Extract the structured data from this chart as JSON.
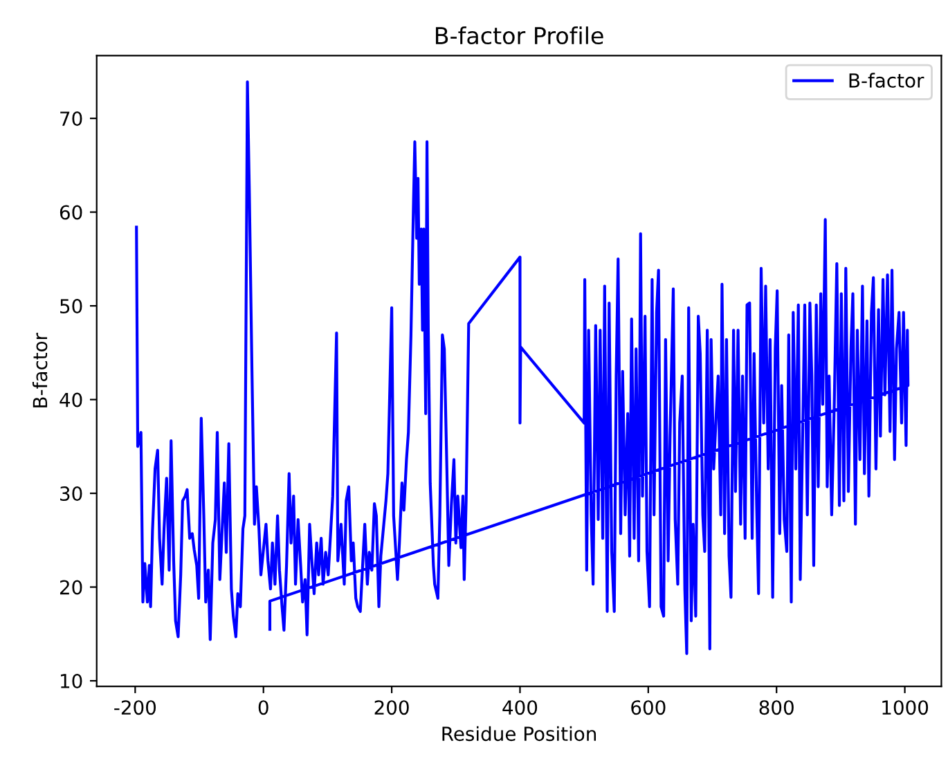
{
  "chart_data": {
    "type": "line",
    "title": "B-factor Profile",
    "xlabel": "Residue Position",
    "ylabel": "B-factor",
    "xlim": [
      -260,
      1057
    ],
    "ylim": [
      9.4,
      76.7
    ],
    "xticks": [
      -200,
      0,
      200,
      400,
      600,
      800,
      1000
    ],
    "yticks": [
      10,
      20,
      30,
      40,
      50,
      60,
      70
    ],
    "legend": "top right",
    "grid": false,
    "series": [
      {
        "name": "B-factor",
        "color": "#0000ff",
        "x": [
          -198,
          -196,
          -191,
          -188,
          -185,
          -181,
          -178,
          -176,
          -173,
          -169,
          -165,
          -162,
          -158,
          -155,
          -151,
          -147,
          -144,
          -140,
          -137,
          -133,
          -129,
          -126,
          -122,
          -119,
          -115,
          -111,
          -108,
          -104,
          -101,
          -97,
          -93,
          -90,
          -86,
          -83,
          -79,
          -75,
          -72,
          -68,
          -65,
          -61,
          -58,
          -54,
          -50,
          -47,
          -43,
          -40,
          -36,
          -32,
          -29,
          -25,
          -22,
          -18,
          -14,
          -11,
          -7,
          -4,
          4,
          7,
          11,
          14,
          18,
          22,
          25,
          29,
          32,
          36,
          40,
          43,
          47,
          50,
          54,
          58,
          61,
          65,
          68,
          72,
          75,
          79,
          83,
          86,
          90,
          93,
          97,
          101,
          108,
          114,
          116,
          121,
          126,
          129,
          133,
          137,
          140,
          144,
          147,
          151,
          155,
          158,
          162,
          165,
          169,
          173,
          176,
          180,
          183,
          191,
          194,
          200,
          203,
          209,
          212,
          216,
          219,
          223,
          226,
          230,
          234,
          236,
          239,
          241,
          243,
          246,
          248,
          250,
          253,
          255,
          257,
          260,
          265,
          267,
          272,
          275,
          279,
          282,
          286,
          289,
          293,
          297,
          300,
          303,
          308,
          311,
          313,
          316,
          320,
          400,
          400,
          401,
          500,
          501,
          504,
          507,
          511,
          514,
          518,
          522,
          525,
          529,
          532,
          536,
          539,
          543,
          547,
          550,
          553,
          557,
          560,
          564,
          568,
          571,
          574,
          578,
          581,
          585,
          588,
          591,
          595,
          598,
          602,
          606,
          609,
          613,
          616,
          620,
          624,
          627,
          631,
          634,
          639,
          642,
          646,
          649,
          653,
          657,
          660,
          663,
          667,
          670,
          674,
          678,
          681,
          685,
          688,
          692,
          696,
          698,
          702,
          706,
          709,
          713,
          715,
          719,
          722,
          726,
          729,
          733,
          736,
          740,
          744,
          747,
          751,
          754,
          758,
          762,
          765,
          769,
          772,
          776,
          780,
          783,
          787,
          790,
          794,
          798,
          801,
          805,
          808,
          812,
          816,
          819,
          823,
          826,
          830,
          834,
          837,
          841,
          844,
          848,
          852,
          855,
          858,
          862,
          865,
          869,
          872,
          876,
          879,
          882,
          886,
          890,
          894,
          898,
          901,
          905,
          908,
          912,
          916,
          919,
          923,
          926,
          930,
          934,
          937,
          941,
          944,
          948,
          951,
          955,
          959,
          962,
          966,
          969,
          973,
          977,
          980,
          984,
          987,
          991,
          995,
          998,
          1002,
          1004,
          1005,
          10,
          10
        ],
        "values": [
          58.4,
          35,
          36.5,
          18.4,
          22.5,
          18.4,
          22.3,
          17.9,
          26,
          32.6,
          34.6,
          25.2,
          20.3,
          26.2,
          31.6,
          21.8,
          35.6,
          22.8,
          16.4,
          14.7,
          21.3,
          29.2,
          29.7,
          30.4,
          25.2,
          25.7,
          24,
          22.3,
          18.8,
          38,
          27.6,
          18.4,
          21.8,
          14.4,
          24.7,
          27.2,
          36.5,
          20.8,
          25.2,
          31.1,
          23.7,
          35.3,
          19.8,
          16.9,
          14.7,
          19.3,
          17.9,
          26.2,
          27.6,
          73.9,
          62.1,
          43.4,
          26.7,
          30.7,
          26.2,
          21.3,
          26.7,
          22.8,
          19.8,
          24.7,
          20.3,
          27.6,
          21.8,
          17.9,
          15.4,
          22.3,
          32.1,
          24.7,
          29.7,
          20.3,
          27.2,
          22.3,
          18.4,
          20.8,
          14.9,
          26.7,
          23.3,
          19.3,
          24.7,
          21.3,
          25.2,
          20.3,
          23.7,
          21.3,
          29.7,
          47.1,
          22.8,
          26.7,
          20.3,
          29.2,
          30.7,
          22.8,
          24.7,
          18.8,
          17.9,
          17.4,
          22.8,
          26.7,
          20.3,
          23.7,
          21.8,
          28.9,
          27.6,
          17.9,
          23.3,
          29.2,
          32.1,
          49.8,
          27.6,
          20.8,
          24.7,
          31.1,
          28.2,
          33.6,
          36.5,
          46.9,
          61.1,
          67.5,
          57.2,
          63.6,
          52.3,
          58.2,
          47.4,
          58.2,
          38.5,
          67.5,
          47.4,
          31.1,
          22.3,
          20.3,
          18.8,
          27.6,
          46.9,
          45.4,
          32.6,
          22.3,
          28.7,
          33.6,
          24.7,
          29.7,
          24.2,
          29.7,
          20.8,
          29.2,
          48.1,
          55.2,
          37.5,
          45.6,
          37.5,
          52.8,
          21.8,
          47.4,
          27.7,
          20.3,
          47.9,
          27.2,
          47.4,
          25.2,
          52.1,
          17.4,
          50.3,
          23.8,
          17.4,
          42.5,
          55,
          25.7,
          43,
          27.7,
          38.5,
          23.3,
          48.6,
          25.2,
          45.4,
          22.8,
          57.7,
          29.7,
          48.9,
          23.8,
          17.9,
          52.8,
          27.7,
          49.3,
          53.8,
          17.9,
          16.9,
          46.4,
          22.8,
          36.1,
          51.8,
          27.2,
          20.3,
          37.5,
          42.5,
          19.8,
          12.9,
          49.8,
          16.4,
          26.7,
          16.9,
          48.9,
          44.9,
          27.7,
          23.8,
          47.4,
          13.4,
          46.4,
          32.6,
          38.5,
          42.5,
          27.7,
          52.3,
          25.7,
          46.4,
          23.3,
          18.9,
          47.4,
          30.2,
          47.4,
          26.7,
          42.5,
          25.2,
          50.1,
          50.3,
          25.2,
          44.9,
          28.7,
          19.3,
          54,
          37.5,
          52.1,
          32.6,
          46.4,
          18.9,
          45.4,
          51.6,
          25.7,
          41.5,
          27.2,
          23.8,
          46.9,
          18.4,
          49.3,
          32.6,
          50.1,
          20.8,
          37.5,
          50.1,
          27.7,
          50.3,
          42.5,
          22.3,
          50.1,
          30.7,
          51.3,
          39.5,
          59.2,
          30.7,
          42.5,
          27.7,
          39.5,
          54.5,
          28.7,
          51.3,
          29.2,
          54,
          30.2,
          45.4,
          51.3,
          26.7,
          47.4,
          33.6,
          52.1,
          32.1,
          48.4,
          29.7,
          49.3,
          53,
          32.6,
          49.6,
          36.1,
          52.8,
          40.5,
          53.3,
          36.6,
          53.8,
          33.6,
          45.4,
          49.3,
          37.5,
          49.3,
          35.1,
          47.4,
          41.5,
          18.5,
          15.5
        ]
      }
    ]
  }
}
